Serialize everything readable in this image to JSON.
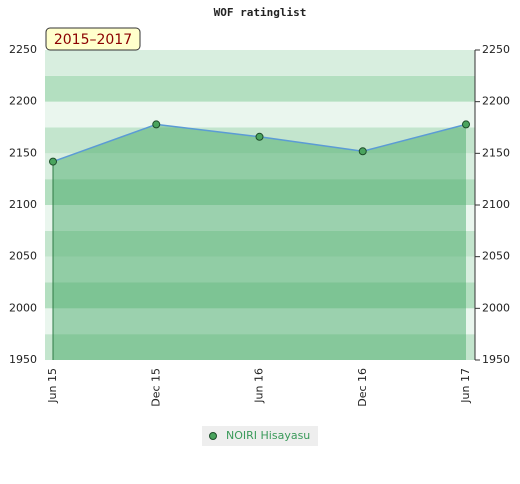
{
  "chart_data": {
    "type": "area",
    "title": "WOF ratinglist",
    "annotation": "2015–2017",
    "categories": [
      "Jun 15",
      "Dec 15",
      "Jun 16",
      "Dec 16",
      "Jun 17"
    ],
    "series": [
      {
        "name": "NOIRI Hisayasu",
        "color": "#5b9bd5",
        "values": [
          2142,
          2178,
          2166,
          2152,
          2178
        ]
      }
    ],
    "ylim": [
      1950,
      2250
    ],
    "yticks": [
      1950,
      2000,
      2050,
      2100,
      2150,
      2200,
      2250
    ]
  }
}
